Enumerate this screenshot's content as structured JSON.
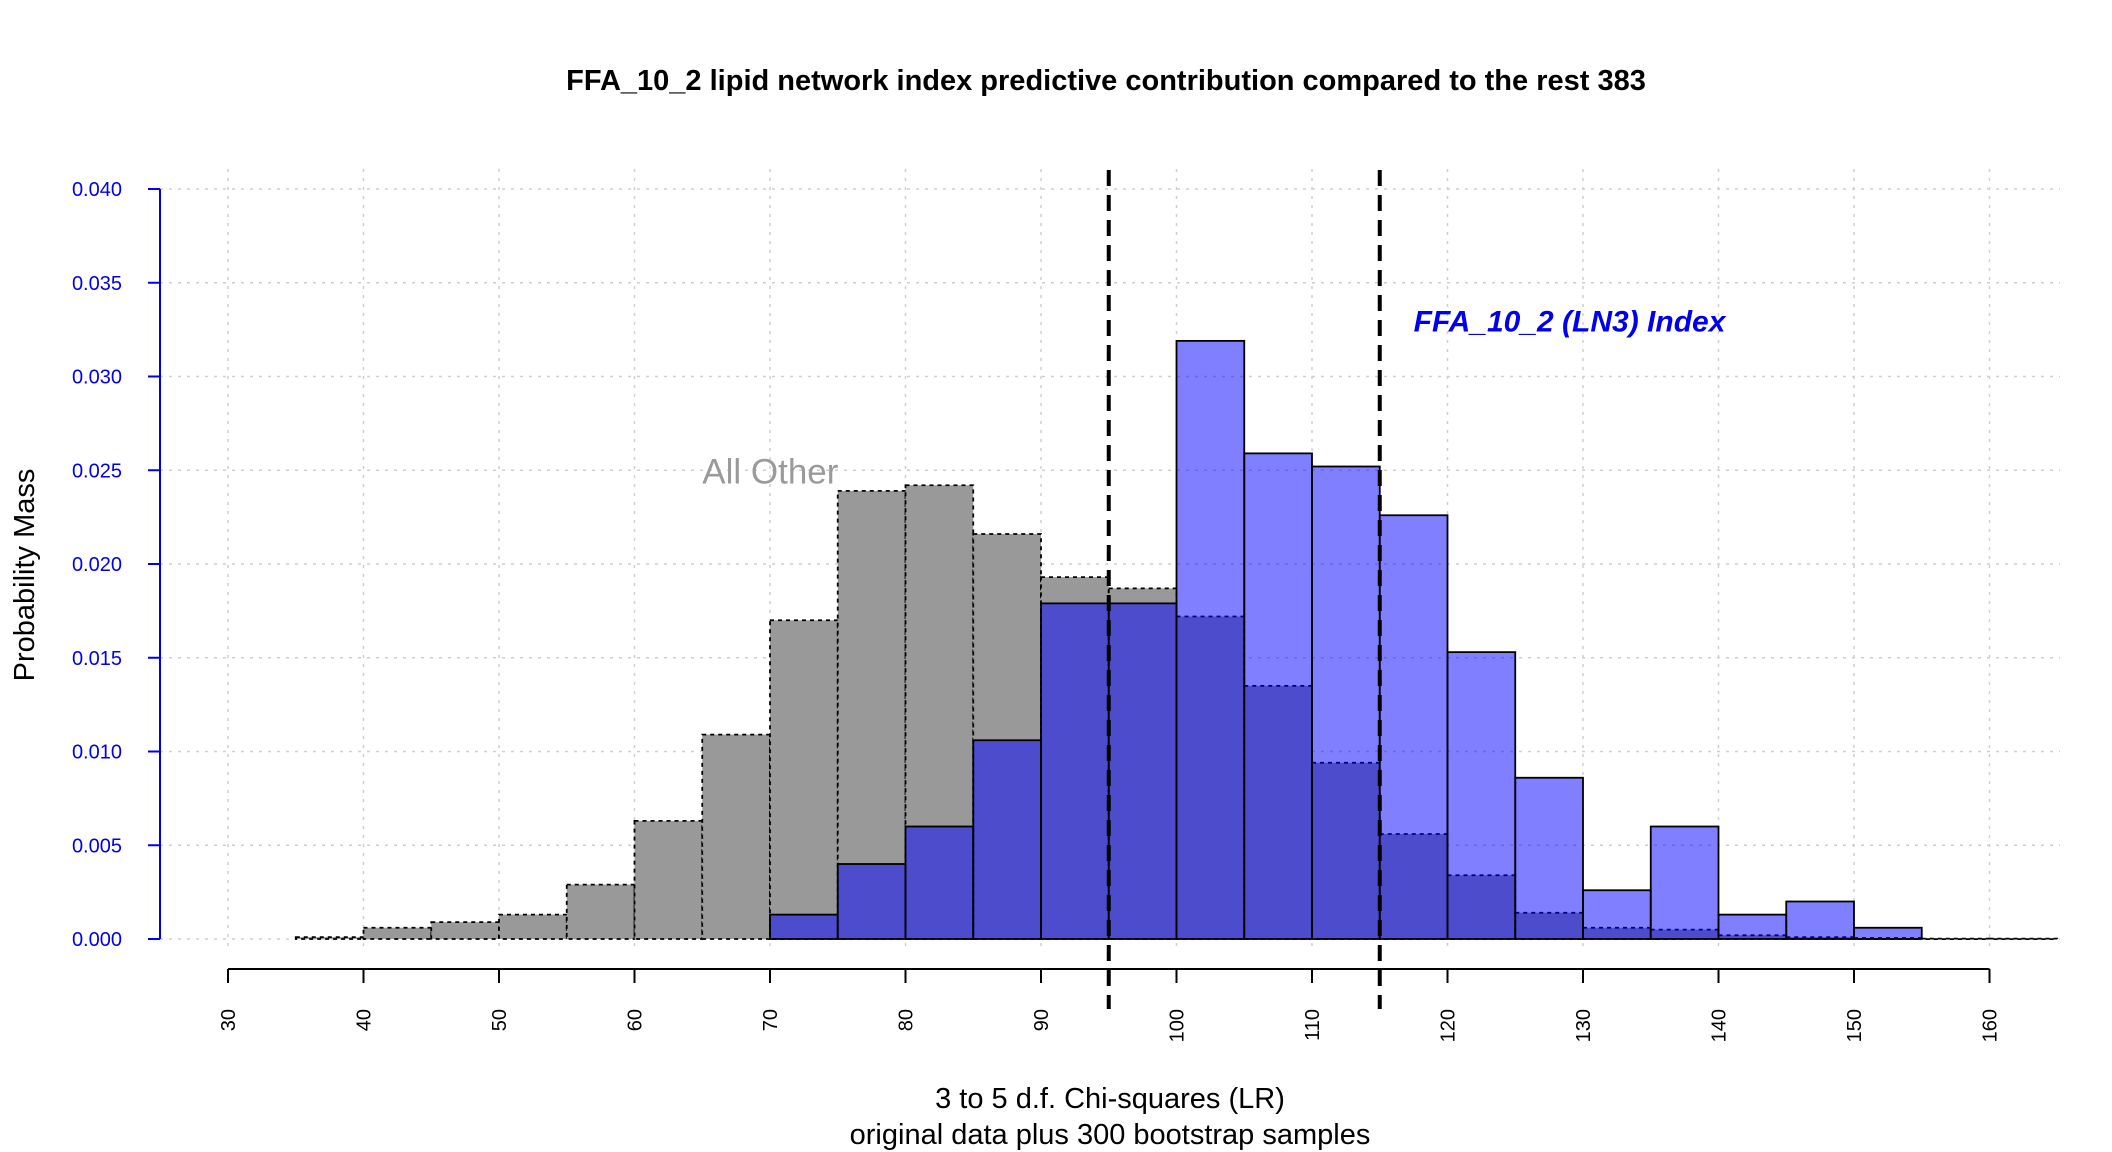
{
  "chart_data": {
    "type": "bar",
    "title": "FFA_10_2 lipid network index predictive contribution compared to the rest 383",
    "xlabel": "3 to 5 d.f. Chi-squares (LR)",
    "xlabel2": "original data plus 300 bootstrap samples",
    "ylabel": "Probability Mass",
    "xlim": [
      30,
      165
    ],
    "ylim": [
      0,
      0.04
    ],
    "xticks": [
      30,
      40,
      50,
      60,
      70,
      80,
      90,
      100,
      110,
      120,
      130,
      140,
      150,
      160
    ],
    "xtick_labels": [
      "30",
      "40",
      "50",
      "60",
      "70",
      "80",
      "90",
      "100",
      "110",
      "120",
      "130",
      "140",
      "150",
      "160"
    ],
    "yticks": [
      0,
      0.005,
      0.01,
      0.015,
      0.02,
      0.025,
      0.03,
      0.035,
      0.04
    ],
    "ytick_labels": [
      "0.000",
      "0.005",
      "0.010",
      "0.015",
      "0.020",
      "0.025",
      "0.030",
      "0.035",
      "0.040"
    ],
    "grid": true,
    "bin_width": 5,
    "series": [
      {
        "name": "All Other",
        "color": "#999999",
        "bins": [
          {
            "x0": 35,
            "y": 0.0001
          },
          {
            "x0": 40,
            "y": 0.0006
          },
          {
            "x0": 45,
            "y": 0.0009
          },
          {
            "x0": 50,
            "y": 0.0013
          },
          {
            "x0": 55,
            "y": 0.0029
          },
          {
            "x0": 60,
            "y": 0.0063
          },
          {
            "x0": 65,
            "y": 0.0109
          },
          {
            "x0": 70,
            "y": 0.017
          },
          {
            "x0": 75,
            "y": 0.0239
          },
          {
            "x0": 80,
            "y": 0.0242
          },
          {
            "x0": 85,
            "y": 0.0216
          },
          {
            "x0": 90,
            "y": 0.0193
          },
          {
            "x0": 95,
            "y": 0.0187
          },
          {
            "x0": 100,
            "y": 0.0172
          },
          {
            "x0": 105,
            "y": 0.0135
          },
          {
            "x0": 110,
            "y": 0.0094
          },
          {
            "x0": 115,
            "y": 0.0056
          },
          {
            "x0": 120,
            "y": 0.0034
          },
          {
            "x0": 125,
            "y": 0.0014
          },
          {
            "x0": 130,
            "y": 0.0006
          },
          {
            "x0": 135,
            "y": 0.0005
          },
          {
            "x0": 140,
            "y": 0.0002
          },
          {
            "x0": 145,
            "y": 0.0001
          },
          {
            "x0": 150,
            "y": 5e-05
          },
          {
            "x0": 155,
            "y": 2e-05
          },
          {
            "x0": 160,
            "y": 2e-05
          }
        ]
      },
      {
        "name": "FFA_10_2 (LN3) Index",
        "color": "#0000ff",
        "bins": [
          {
            "x0": 70,
            "y": 0.0013
          },
          {
            "x0": 75,
            "y": 0.004
          },
          {
            "x0": 80,
            "y": 0.006
          },
          {
            "x0": 85,
            "y": 0.0106
          },
          {
            "x0": 90,
            "y": 0.0179
          },
          {
            "x0": 95,
            "y": 0.0179
          },
          {
            "x0": 100,
            "y": 0.0319
          },
          {
            "x0": 105,
            "y": 0.0259
          },
          {
            "x0": 110,
            "y": 0.0252
          },
          {
            "x0": 115,
            "y": 0.0226
          },
          {
            "x0": 120,
            "y": 0.0153
          },
          {
            "x0": 125,
            "y": 0.0086
          },
          {
            "x0": 130,
            "y": 0.0026
          },
          {
            "x0": 135,
            "y": 0.006
          },
          {
            "x0": 140,
            "y": 0.0013
          },
          {
            "x0": 145,
            "y": 0.002
          },
          {
            "x0": 150,
            "y": 0.0006
          }
        ]
      }
    ],
    "vlines": [
      95,
      115
    ],
    "annotations": [
      {
        "text": "All Other",
        "x": 65,
        "y": 0.0243,
        "role": "other"
      },
      {
        "text": "FFA_10_2 (LN3) Index",
        "x": 117.5,
        "y": 0.0324,
        "role": "index"
      }
    ]
  }
}
